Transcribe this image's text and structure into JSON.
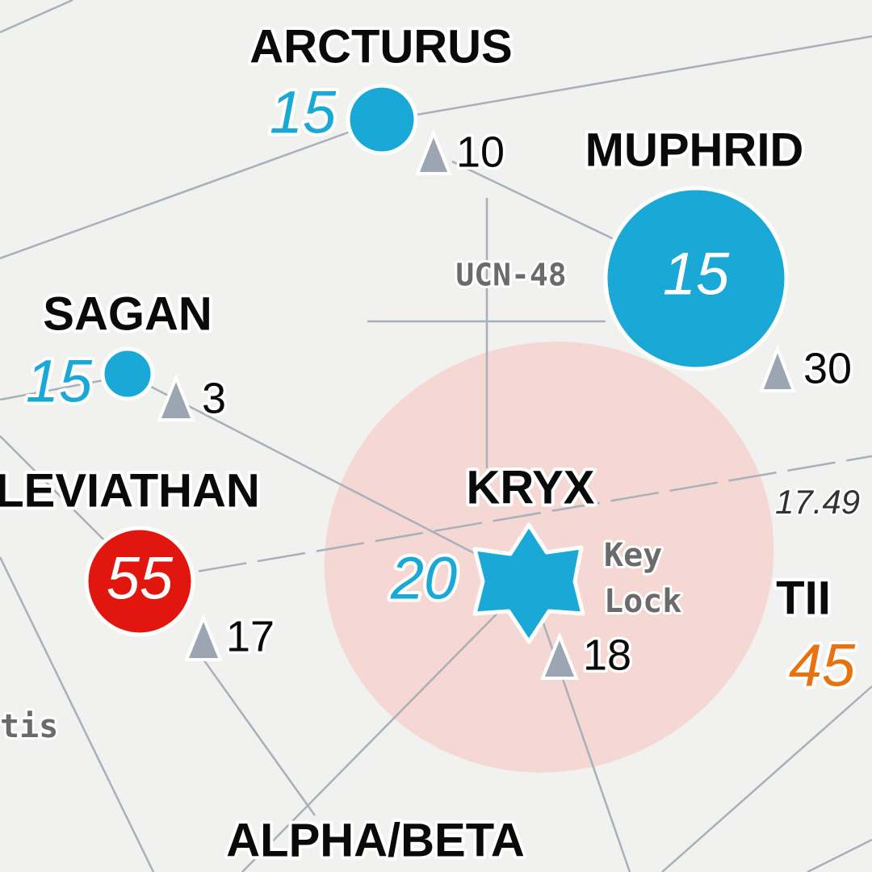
{
  "systems": [
    {
      "name": "ARCTURUS",
      "security": "15",
      "jumps": "10"
    },
    {
      "name": "MUPHRID",
      "security": "15",
      "jumps": "30"
    },
    {
      "name": "SAGAN",
      "security": "15",
      "jumps": "3"
    },
    {
      "name": "LEVIATHAN",
      "security": "55",
      "jumps": "17"
    },
    {
      "name": "KRYX",
      "security": "20",
      "jumps": "18",
      "tags": [
        "Key",
        "Lock"
      ]
    },
    {
      "name": "TII",
      "security": "45"
    },
    {
      "name": "ALPHA/BETA"
    }
  ],
  "labels": {
    "region": "UCN-48",
    "distance": "17.49",
    "fragment": "tis"
  }
}
